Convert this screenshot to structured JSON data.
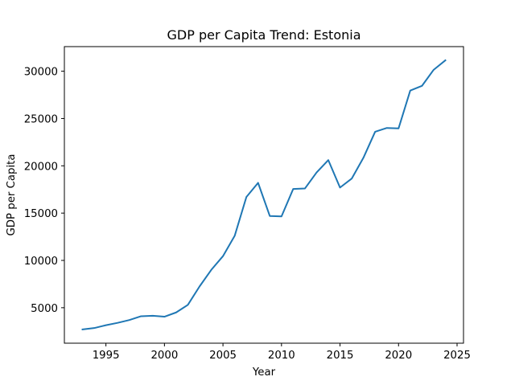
{
  "chart_data": {
    "type": "line",
    "title": "GDP per Capita Trend: Estonia",
    "xlabel": "Year",
    "ylabel": "GDP per Capita",
    "xlim": [
      1991.45,
      2025.55
    ],
    "ylim": [
      1250,
      32600
    ],
    "xticks": [
      1995,
      2000,
      2005,
      2010,
      2015,
      2020,
      2025
    ],
    "yticks": [
      5000,
      10000,
      15000,
      20000,
      25000,
      30000
    ],
    "grid": false,
    "series": [
      {
        "color": "#1f77b4",
        "x": [
          1993,
          1994,
          1995,
          1996,
          1997,
          1998,
          1999,
          2000,
          2001,
          2002,
          2003,
          2004,
          2005,
          2006,
          2007,
          2008,
          2009,
          2010,
          2011,
          2012,
          2013,
          2014,
          2015,
          2016,
          2017,
          2018,
          2019,
          2020,
          2021,
          2022,
          2023,
          2024
        ],
        "y": [
          2700,
          2850,
          3150,
          3400,
          3700,
          4100,
          4150,
          4050,
          4500,
          5300,
          7250,
          9000,
          10450,
          12600,
          16700,
          18200,
          14700,
          14650,
          17550,
          17600,
          19300,
          20600,
          17700,
          18650,
          20850,
          23600,
          24000,
          23950,
          27950,
          28450,
          30150,
          31150
        ]
      }
    ]
  }
}
